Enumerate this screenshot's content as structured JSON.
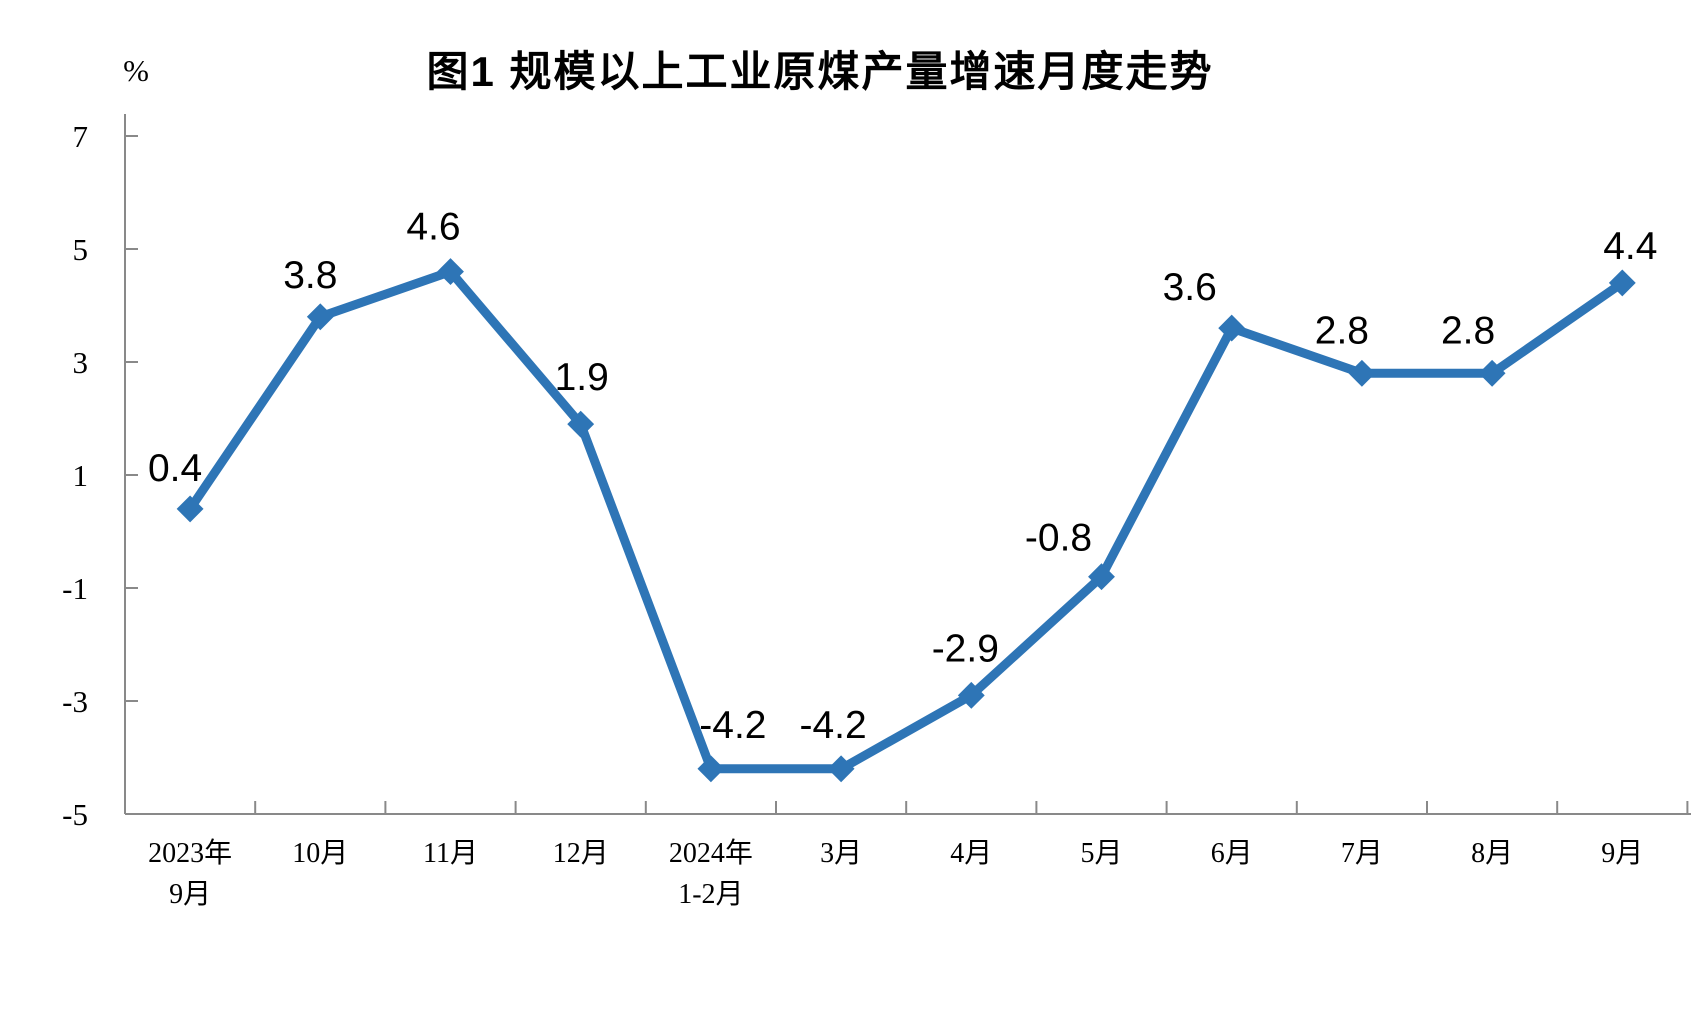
{
  "chart_data": {
    "type": "line",
    "title": "图1 规模以上工业原煤产量增速月度走势",
    "unit_label": "%",
    "categories": [
      "2023年\n9月",
      "10月",
      "11月",
      "12月",
      "2024年\n1-2月",
      "3月",
      "4月",
      "5月",
      "6月",
      "7月",
      "8月",
      "9月"
    ],
    "values": [
      0.4,
      3.8,
      4.6,
      1.9,
      -4.2,
      -4.2,
      -2.9,
      -0.8,
      3.6,
      2.8,
      2.8,
      4.4
    ],
    "data_labels": [
      "0.4",
      "3.8",
      "4.6",
      "1.9",
      "-4.2",
      "-4.2",
      "-2.9",
      "-0.8",
      "3.6",
      "2.8",
      "2.8",
      "4.4"
    ],
    "yticks": [
      7,
      5,
      3,
      1,
      -1,
      -3,
      -5
    ],
    "ylim": [
      -5,
      7
    ],
    "grid": false,
    "legend": "none",
    "marker": "diamond",
    "line_color": "#2E75B6",
    "axis_color": "#898989",
    "text_color": "#000000"
  }
}
